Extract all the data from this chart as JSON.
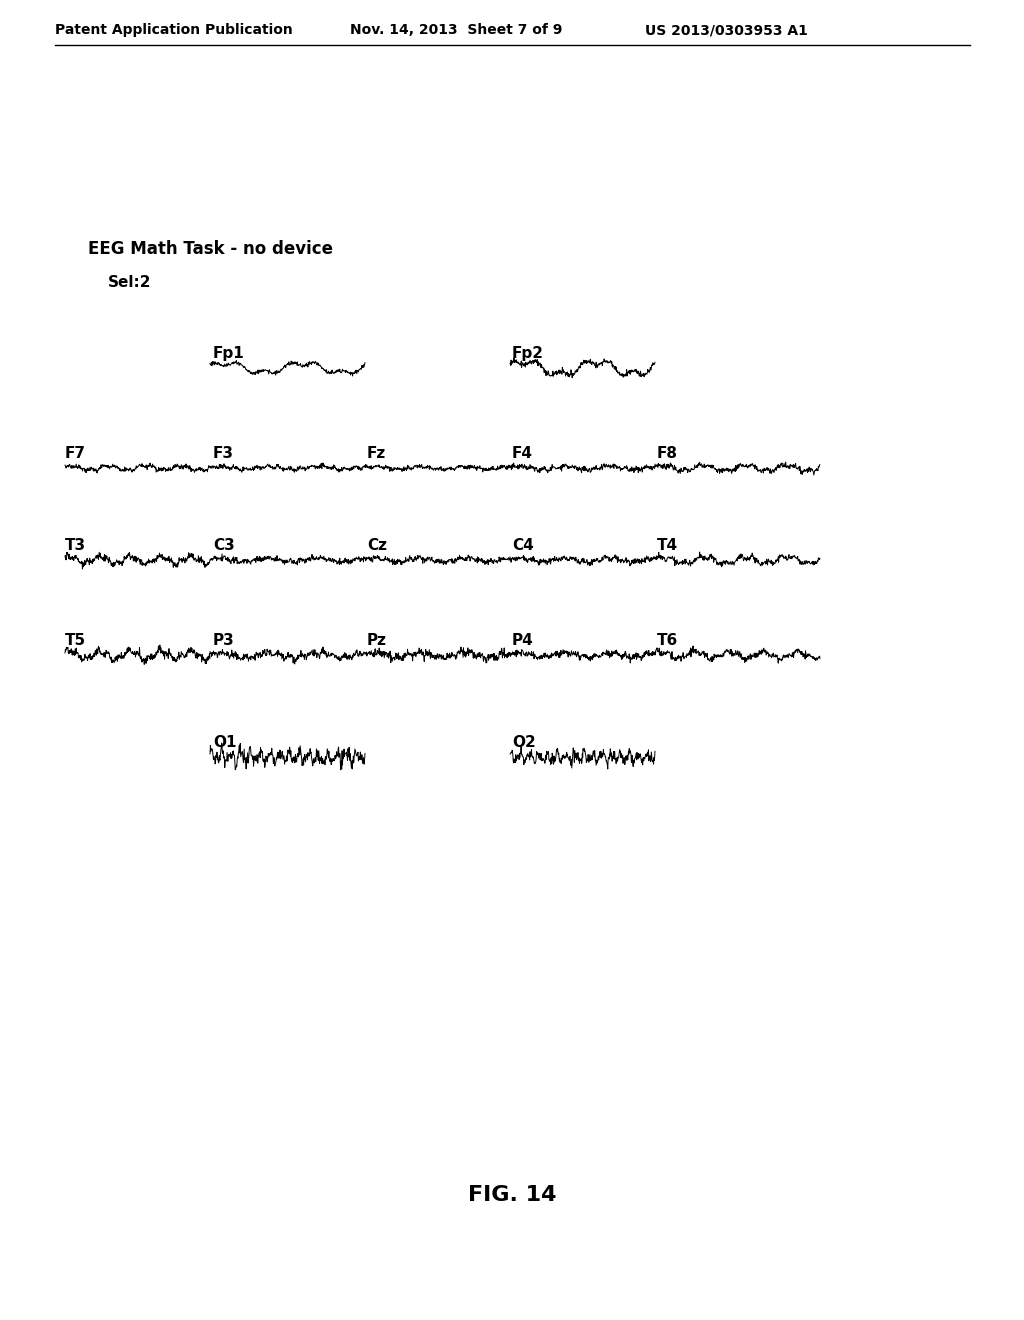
{
  "header_left": "Patent Application Publication",
  "header_mid": "Nov. 14, 2013  Sheet 7 of 9",
  "header_right": "US 2013/0303953 A1",
  "title": "EEG Math Task - no device",
  "sel_label": "Sel:2",
  "figure_label": "FIG. 14",
  "background_color": "#ffffff",
  "text_color": "#000000",
  "channels": {
    "row0": [
      {
        "label": "Fp1",
        "col": 1
      },
      {
        "label": "Fp2",
        "col": 3
      }
    ],
    "row1": [
      {
        "label": "F7",
        "col": 0
      },
      {
        "label": "F3",
        "col": 1
      },
      {
        "label": "Fz",
        "col": 2
      },
      {
        "label": "F4",
        "col": 3
      },
      {
        "label": "F8",
        "col": 4
      }
    ],
    "row2": [
      {
        "label": "T3",
        "col": 0
      },
      {
        "label": "C3",
        "col": 1
      },
      {
        "label": "Cz",
        "col": 2
      },
      {
        "label": "C4",
        "col": 3
      },
      {
        "label": "T4",
        "col": 4
      }
    ],
    "row3": [
      {
        "label": "T5",
        "col": 0
      },
      {
        "label": "P3",
        "col": 1
      },
      {
        "label": "Pz",
        "col": 2
      },
      {
        "label": "P4",
        "col": 3
      },
      {
        "label": "T6",
        "col": 4
      }
    ],
    "row4": [
      {
        "label": "O1",
        "col": 1
      },
      {
        "label": "O2",
        "col": 3
      }
    ]
  },
  "display_amp": {
    "Fp1": 8,
    "Fp2": 10,
    "F7": 5,
    "F3": 5,
    "Fz": 4,
    "F4": 5,
    "F8": 7,
    "T3": 9,
    "C3": 6,
    "Cz": 5,
    "C4": 6,
    "T4": 8,
    "T5": 10,
    "P3": 9,
    "Pz": 8,
    "P4": 8,
    "T6": 9,
    "O1": 14,
    "O2": 12
  },
  "seeds": {
    "Fp1": 1,
    "Fp2": 2,
    "F7": 3,
    "F3": 4,
    "Fz": 5,
    "F4": 6,
    "F8": 7,
    "T3": 8,
    "C3": 9,
    "Cz": 10,
    "C4": 11,
    "T4": 12,
    "T5": 13,
    "P3": 14,
    "Pz": 15,
    "P4": 16,
    "T6": 17,
    "O1": 18,
    "O2": 19
  }
}
